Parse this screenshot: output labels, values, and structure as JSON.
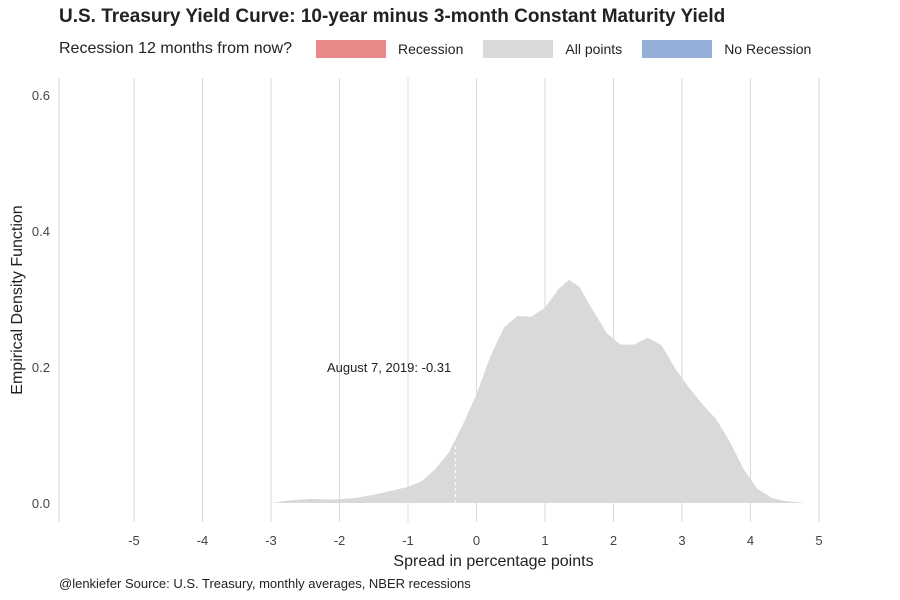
{
  "title": "U.S. Treasury Yield Curve: 10-year minus 3-month Constant Maturity Yield",
  "legend": {
    "title": "Recession 12 months from now?",
    "items": [
      {
        "label": "Recession",
        "color": "#e8898a"
      },
      {
        "label": "All points",
        "color": "#d9d9d9"
      },
      {
        "label": "No Recession",
        "color": "#94b0d8"
      }
    ]
  },
  "caption": "@lenkiefer Source: U.S. Treasury, monthly averages, NBER recessions",
  "chart_data": {
    "type": "area",
    "xlabel": "Spread in percentage points",
    "ylabel": "Empirical Density Function",
    "xlim": [
      -6,
      5
    ],
    "ylim": [
      0,
      0.6
    ],
    "x_ticks": [
      -5,
      -4,
      -3,
      -2,
      -1,
      0,
      1,
      2,
      3,
      4,
      5
    ],
    "y_ticks": [
      "0.0",
      "0.2",
      "0.4",
      "0.6"
    ],
    "grid": true,
    "series": [
      {
        "name": "All points",
        "color": "#d9d9d9",
        "x": [
          -3.0,
          -2.7,
          -2.4,
          -2.1,
          -1.8,
          -1.5,
          -1.2,
          -1.0,
          -0.8,
          -0.6,
          -0.4,
          -0.2,
          0.0,
          0.2,
          0.4,
          0.6,
          0.8,
          1.0,
          1.2,
          1.35,
          1.5,
          1.7,
          1.9,
          2.1,
          2.3,
          2.5,
          2.7,
          2.9,
          3.1,
          3.3,
          3.5,
          3.7,
          3.9,
          4.1,
          4.3,
          4.5,
          4.8
        ],
        "y": [
          0.0,
          0.004,
          0.006,
          0.005,
          0.007,
          0.012,
          0.019,
          0.024,
          0.032,
          0.05,
          0.075,
          0.115,
          0.16,
          0.215,
          0.258,
          0.275,
          0.274,
          0.287,
          0.315,
          0.328,
          0.318,
          0.283,
          0.25,
          0.233,
          0.233,
          0.243,
          0.232,
          0.198,
          0.17,
          0.145,
          0.123,
          0.09,
          0.05,
          0.021,
          0.008,
          0.003,
          0.0
        ]
      }
    ],
    "annotation": {
      "x": -0.31,
      "label": "August 7, 2019: -0.31"
    }
  }
}
